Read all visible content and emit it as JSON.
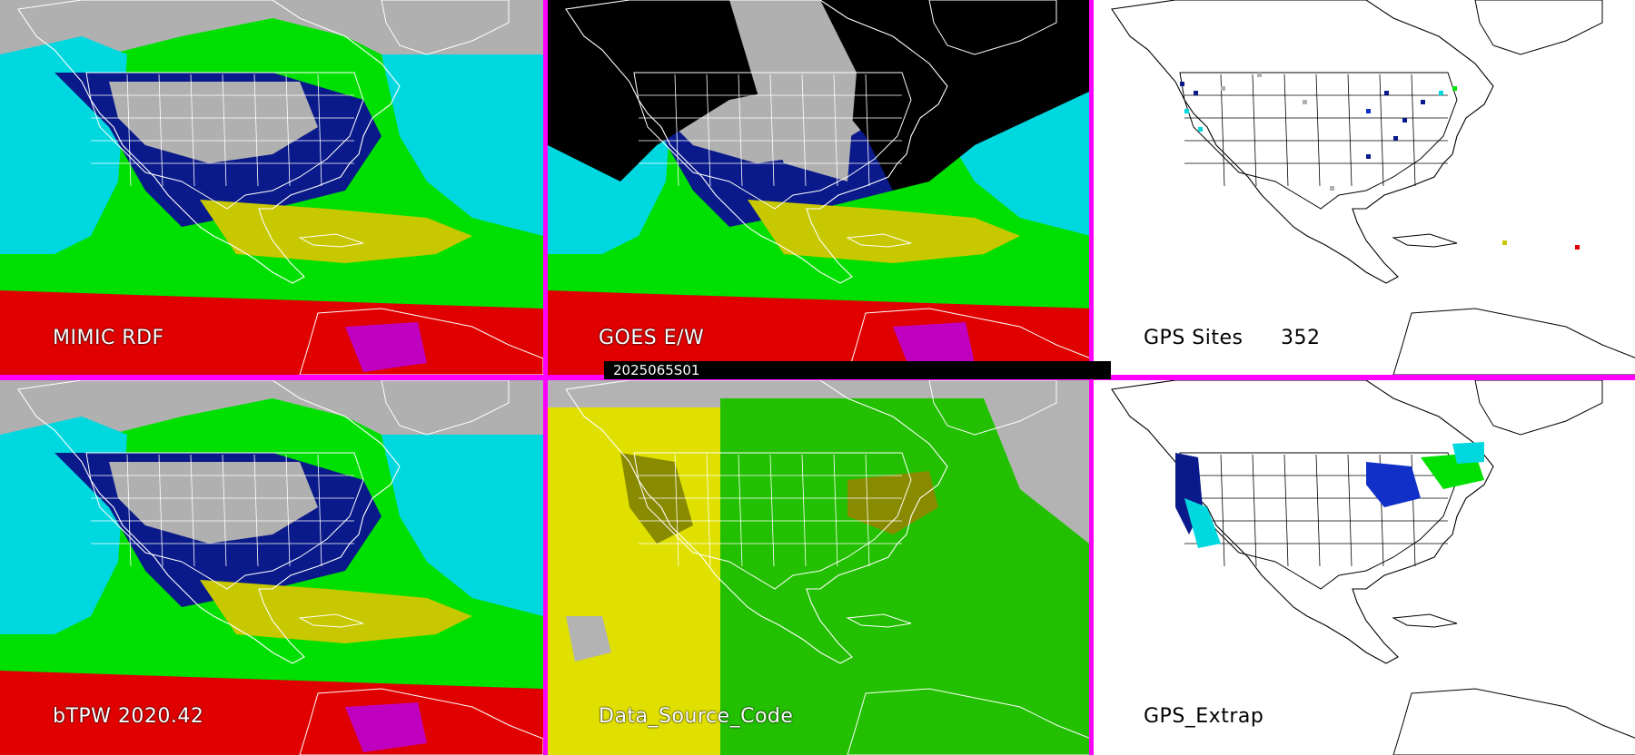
{
  "panels": {
    "mimic": {
      "label": "MIMIC RDF",
      "label_style": "dark",
      "fill": "mimic"
    },
    "goes": {
      "label": "GOES E/W",
      "label_style": "dark",
      "fill": "goes"
    },
    "gps_sites": {
      "label": "GPS Sites",
      "count": "352",
      "label_style": "light",
      "fill": "gps"
    },
    "btpw": {
      "label": "bTPW 2020.42",
      "label_style": "dark",
      "fill": "mimic"
    },
    "source_code": {
      "label": "Data_Source_Code",
      "label_style": "dark",
      "fill": "source"
    },
    "gps_extrap": {
      "label": "GPS_Extrap",
      "label_style": "light",
      "fill": "gpsx"
    }
  },
  "timestamp": "2025065S01",
  "colors": {
    "divider": "#ff00ff",
    "ocean_background": "#000000",
    "map_lines_on_dark": "#ffffff",
    "map_lines_on_light": "#000000",
    "tpw_scale": [
      "#b0b0b0",
      "#0a1a8a",
      "#1030c8",
      "#00d8e0",
      "#00e000",
      "#c8c800",
      "#e00000",
      "#c000c0"
    ],
    "source_code_colors": [
      "#b3b3b3",
      "#e0e000",
      "#22c000",
      "#8a8a00"
    ]
  }
}
